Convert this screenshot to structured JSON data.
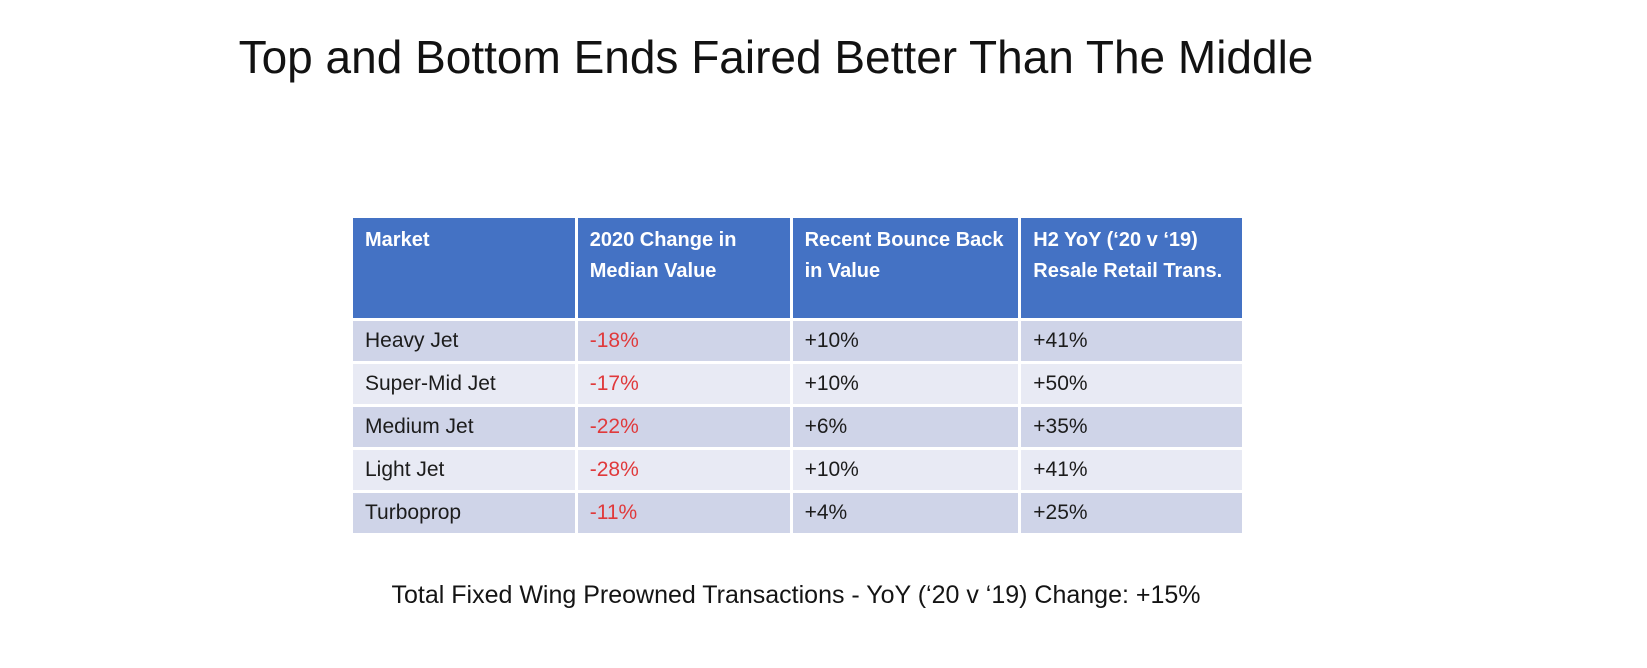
{
  "slide": {
    "title": "Top and Bottom Ends Faired Better Than The Middle",
    "footnote": "Total Fixed Wing Preowned Transactions - YoY (‘20 v ‘19) Change: +15%"
  },
  "table": {
    "columns": [
      {
        "label": "Market"
      },
      {
        "label": "2020 Change in Median Value"
      },
      {
        "label": "Recent Bounce Back in Value"
      },
      {
        "label": "H2 YoY (‘20 v ‘19) Resale Retail Trans."
      }
    ],
    "rows": [
      {
        "market": "Heavy Jet",
        "median_change_2020": "-18%",
        "recent_bounce_back": "+10%",
        "h2_yoy_resale_trans": "+41%"
      },
      {
        "market": "Super-Mid Jet",
        "median_change_2020": "-17%",
        "recent_bounce_back": "+10%",
        "h2_yoy_resale_trans": "+50%"
      },
      {
        "market": "Medium Jet",
        "median_change_2020": "-22%",
        "recent_bounce_back": "+6%",
        "h2_yoy_resale_trans": "+35%"
      },
      {
        "market": "Light Jet",
        "median_change_2020": "-28%",
        "recent_bounce_back": "+10%",
        "h2_yoy_resale_trans": "+41%"
      },
      {
        "market": "Turboprop",
        "median_change_2020": "-11%",
        "recent_bounce_back": "+4%",
        "h2_yoy_resale_trans": "+25%"
      }
    ],
    "total_row_count": 5
  },
  "colors": {
    "header_bg": "#4472c4",
    "header_text": "#ffffff",
    "row_band_dark": "#cfd4e8",
    "row_band_light": "#e8eaf4",
    "negative_value": "#e0393b",
    "body_text": "#1c1c1c"
  }
}
